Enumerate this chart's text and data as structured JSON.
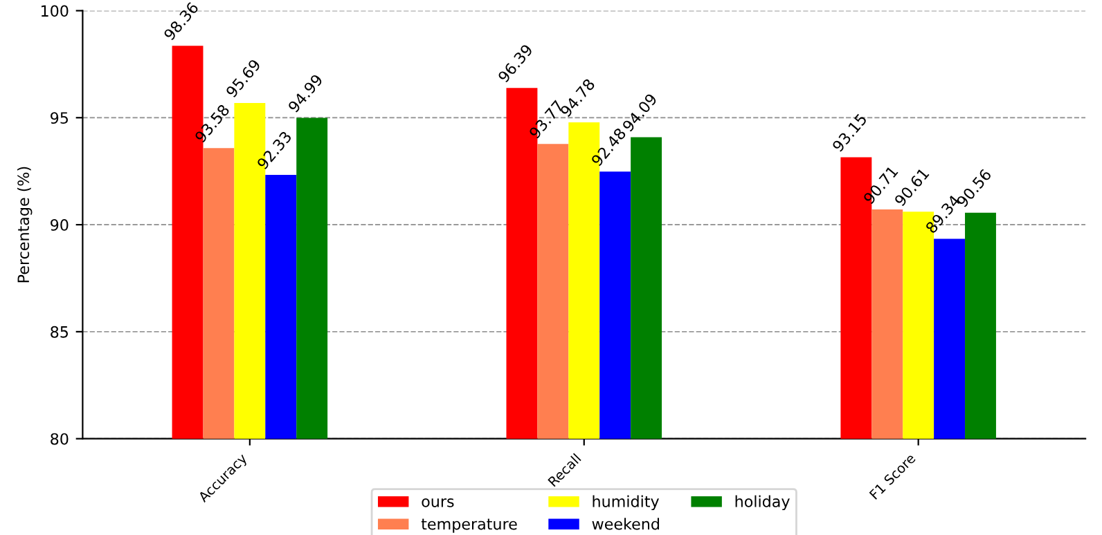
{
  "chart_data": {
    "type": "bar",
    "ylabel": "Percentage (%)",
    "categories": [
      "Accuracy",
      "Recall",
      "F1 Score"
    ],
    "series": [
      {
        "name": "ours",
        "color": "#ff0000",
        "values": [
          98.36,
          96.39,
          93.15
        ]
      },
      {
        "name": "temperature",
        "color": "#ff7f50",
        "values": [
          93.58,
          93.77,
          90.71
        ]
      },
      {
        "name": "humidity",
        "color": "#ffff00",
        "values": [
          95.69,
          94.78,
          90.61
        ]
      },
      {
        "name": "weekend",
        "color": "#0000ff",
        "values": [
          92.33,
          92.48,
          89.34
        ]
      },
      {
        "name": "holiday",
        "color": "#008000",
        "values": [
          94.99,
          94.09,
          90.56
        ]
      }
    ],
    "ylim": [
      80,
      100
    ],
    "yticks": [
      80,
      85,
      90,
      95,
      100
    ],
    "grid": "y",
    "legend": "bottom",
    "data_labels": true
  }
}
